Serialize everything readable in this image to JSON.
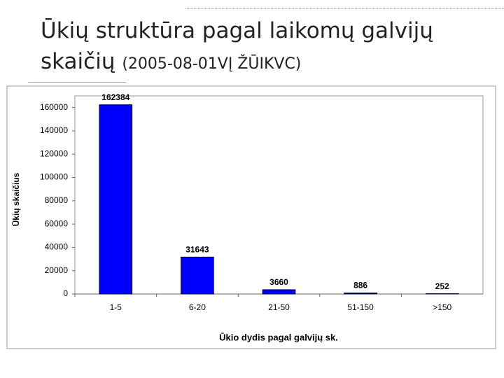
{
  "chart_data": {
    "type": "bar",
    "title": "Ūkių struktūra pagal laikomų galvijų skaičių",
    "subtitle": "(2005-08-01VĮ ŽŪIKVC)",
    "x_label": "Ūkio dydis pagal galvijų sk.",
    "y_label": "Ūkių skaičius",
    "categories": [
      "1-5",
      "6-20",
      "21-50",
      "51-150",
      ">150"
    ],
    "values": [
      162384,
      31643,
      3660,
      886,
      252
    ],
    "color": "#0000ff",
    "ylim": [
      0,
      170000
    ],
    "yticks": [
      0,
      20000,
      40000,
      60000,
      80000,
      100000,
      120000,
      140000,
      160000
    ],
    "grid": false
  }
}
